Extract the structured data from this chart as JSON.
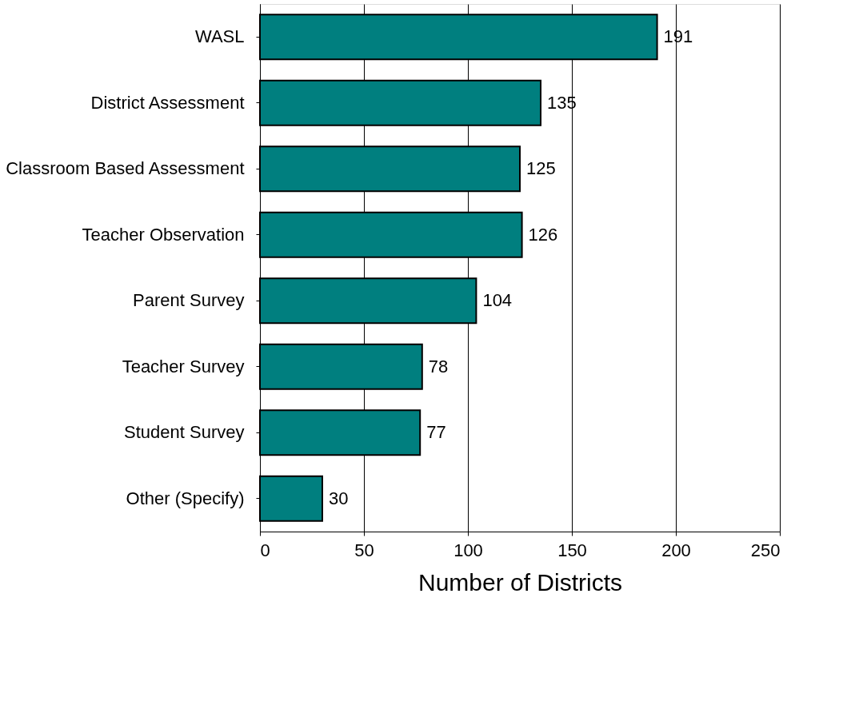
{
  "chart_data": {
    "type": "bar",
    "orientation": "horizontal",
    "xlabel": "Number of Districts",
    "categories": [
      "WASL",
      "District Assessment",
      "Classroom Based Assessment",
      "Teacher Observation",
      "Parent Survey",
      "Teacher Survey",
      "Student Survey",
      "Other (Specify)"
    ],
    "values": [
      191,
      135,
      125,
      126,
      104,
      78,
      77,
      30
    ],
    "color": "#007f7f",
    "xlim": [
      0,
      250
    ],
    "xticks": [
      0,
      50,
      100,
      150,
      200,
      250
    ],
    "grid": "x",
    "data_labels": true
  }
}
